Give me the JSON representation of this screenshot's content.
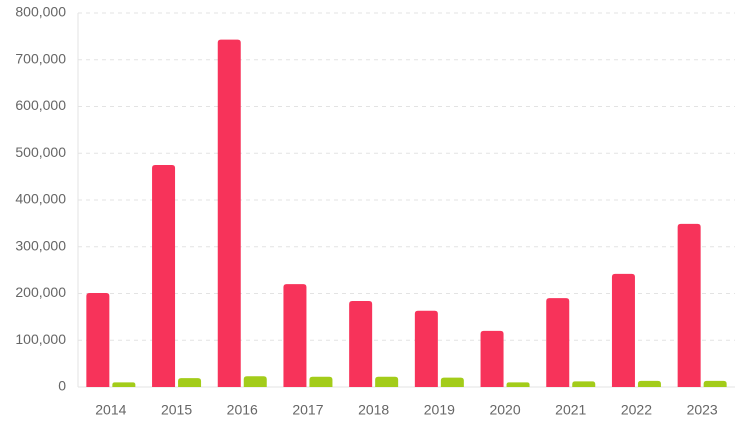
{
  "chart_data": {
    "type": "bar",
    "categories": [
      "2014",
      "2015",
      "2016",
      "2017",
      "2018",
      "2019",
      "2020",
      "2021",
      "2022",
      "2023"
    ],
    "series": [
      {
        "color": "#f7335a",
        "values": [
          201000,
          475000,
          743000,
          220000,
          184000,
          163000,
          120000,
          190000,
          242000,
          349000
        ]
      },
      {
        "color": "#a3cc1a",
        "values": [
          10000,
          19000,
          23000,
          22000,
          22000,
          20000,
          10000,
          12000,
          13000,
          13000
        ]
      }
    ],
    "ylim": [
      0,
      800000
    ],
    "yticks": [
      0,
      {
        "value": 100000,
        "label": "100,000"
      },
      {
        "value": 200000,
        "label": "200,000"
      },
      {
        "value": 300000,
        "label": "300,000"
      },
      {
        "value": 400000,
        "label": "400,000"
      },
      {
        "value": 500000,
        "label": "500,000"
      },
      {
        "value": 600000,
        "label": "600,000"
      },
      {
        "value": 700000,
        "label": "700,000"
      },
      {
        "value": 800000,
        "label": "800,000"
      }
    ],
    "grid": true
  }
}
